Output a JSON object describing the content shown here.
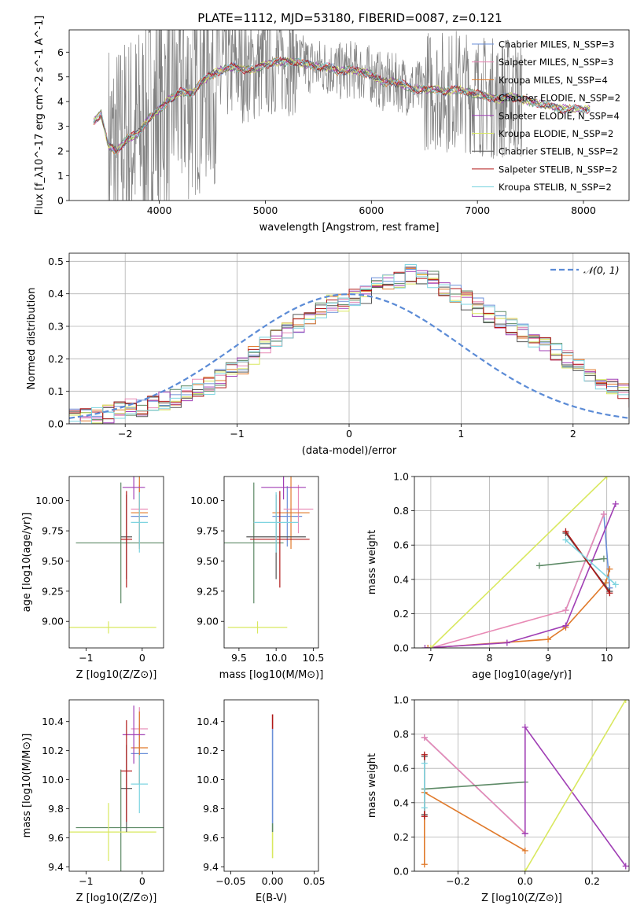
{
  "figure": {
    "title": "PLATE=1112, MJD=53180, FIBERID=0087, z=0.121"
  },
  "legend_spectrum": [
    {
      "text": "Chabrier MILES, N_SSP=3",
      "color": "#6a8fd8"
    },
    {
      "text": "Salpeter MILES, N_SSP=3",
      "color": "#e88ab5"
    },
    {
      "text": "Kroupa MILES, N_SSP=4",
      "color": "#e07a2b"
    },
    {
      "text": "Chabrier ELODIE, N_SSP=2",
      "color": "#5d8a66"
    },
    {
      "text": "Salpeter ELODIE, N_SSP=4",
      "color": "#a03fb5"
    },
    {
      "text": "Kroupa ELODIE, N_SSP=2",
      "color": "#d9e85f"
    },
    {
      "text": "Chabrier STELIB, N_SSP=2",
      "color": "#555555"
    },
    {
      "text": "Salpeter STELIB, N_SSP=2",
      "color": "#b01818"
    },
    {
      "text": "Kroupa STELIB, N_SSP=2",
      "color": "#7ed4e0"
    }
  ],
  "legend_hist": {
    "text": "𝒩(0, 1)",
    "color": "#5b8bd6"
  },
  "chart_data": [
    {
      "id": "spectrum",
      "type": "line",
      "xlabel": "wavelength [Angstrom, rest frame]",
      "ylabel": "Flux [f_λ10^-17 erg cm^-2 s^-1 A^-1]",
      "xlim": [
        3150,
        8430
      ],
      "ylim": [
        0,
        6.9
      ],
      "xticks": [
        4000,
        5000,
        6000,
        7000,
        8000
      ],
      "yticks": [
        0,
        1,
        2,
        3,
        4,
        5,
        6
      ],
      "grid": false,
      "legend": "upper right",
      "continuum": [
        [
          3380,
          3.2
        ],
        [
          3450,
          3.5
        ],
        [
          3520,
          2.2
        ],
        [
          3600,
          2.0
        ],
        [
          3700,
          2.5
        ],
        [
          3800,
          2.7
        ],
        [
          3900,
          3.3
        ],
        [
          4000,
          3.7
        ],
        [
          4100,
          4.1
        ],
        [
          4200,
          4.4
        ],
        [
          4300,
          4.3
        ],
        [
          4400,
          4.8
        ],
        [
          4500,
          5.1
        ],
        [
          4600,
          5.3
        ],
        [
          4700,
          5.4
        ],
        [
          4800,
          5.3
        ],
        [
          4900,
          5.3
        ],
        [
          5000,
          5.5
        ],
        [
          5100,
          5.6
        ],
        [
          5200,
          5.6
        ],
        [
          5300,
          5.6
        ],
        [
          5400,
          5.5
        ],
        [
          5500,
          5.4
        ],
        [
          5600,
          5.4
        ],
        [
          5700,
          5.2
        ],
        [
          5800,
          5.3
        ],
        [
          5900,
          5.2
        ],
        [
          6000,
          5.1
        ],
        [
          6100,
          4.8
        ],
        [
          6200,
          4.8
        ],
        [
          6300,
          4.7
        ],
        [
          6400,
          4.5
        ],
        [
          6500,
          4.5
        ],
        [
          6600,
          4.5
        ],
        [
          6700,
          4.4
        ],
        [
          6800,
          4.5
        ],
        [
          6900,
          4.4
        ],
        [
          7000,
          4.3
        ],
        [
          7100,
          4.2
        ],
        [
          7200,
          4.1
        ],
        [
          7300,
          4.2
        ],
        [
          7400,
          4.1
        ],
        [
          7500,
          4.0
        ],
        [
          7600,
          3.9
        ],
        [
          7700,
          3.8
        ],
        [
          7800,
          3.7
        ],
        [
          7900,
          3.7
        ],
        [
          8000,
          3.7
        ],
        [
          8060,
          3.7
        ]
      ],
      "observed_range": [
        3520,
        7420
      ]
    },
    {
      "id": "residuals",
      "type": "bar",
      "xlabel": "(data-model)/error",
      "ylabel": "Normed distribution",
      "xlim": [
        -2.5,
        2.5
      ],
      "ylim": [
        0,
        0.525
      ],
      "xticks": [
        -2,
        -1,
        0,
        1,
        2
      ],
      "yticks": [
        0.0,
        0.1,
        0.2,
        0.3,
        0.4,
        0.5
      ],
      "grid": true,
      "legend": "upper right",
      "bin_width": 0.1,
      "bin_start": -2.5,
      "histogram": [
        0.02,
        0.02,
        0.02,
        0.03,
        0.04,
        0.05,
        0.05,
        0.06,
        0.07,
        0.08,
        0.1,
        0.11,
        0.12,
        0.14,
        0.16,
        0.18,
        0.21,
        0.24,
        0.26,
        0.29,
        0.31,
        0.33,
        0.35,
        0.37,
        0.37,
        0.39,
        0.4,
        0.42,
        0.43,
        0.44,
        0.46,
        0.45,
        0.44,
        0.42,
        0.4,
        0.38,
        0.36,
        0.34,
        0.32,
        0.3,
        0.28,
        0.26,
        0.24,
        0.22,
        0.2,
        0.17,
        0.15,
        0.13,
        0.11,
        0.1,
        0.08,
        0.07,
        0.06,
        0.05,
        0.04,
        0.03,
        0.03,
        0.03,
        0.02,
        0.02
      ]
    },
    {
      "id": "age-vs-Z",
      "type": "scatter",
      "xlabel": "Z [log10(Z/Z⊙)]",
      "ylabel": "age  [log10(age/yr)]",
      "xlim": [
        -1.3,
        0.38
      ],
      "ylim": [
        8.78,
        10.2
      ],
      "xticks": [
        -1,
        0
      ],
      "yticks": [
        9.0,
        9.25,
        9.5,
        9.75,
        10.0
      ],
      "points": [
        {
          "s": 0,
          "x": -0.05,
          "xe": 0.15,
          "y": 9.87,
          "ye": 0.25
        },
        {
          "s": 1,
          "x": -0.05,
          "xe": 0.15,
          "y": 9.93,
          "ye": 0.2
        },
        {
          "s": 2,
          "x": -0.05,
          "xe": 0.15,
          "y": 9.9,
          "ye": 0.3
        },
        {
          "s": 3,
          "x": -0.38,
          "xe": 0.8,
          "y": 9.65,
          "ye": 0.5
        },
        {
          "s": 4,
          "x": -0.15,
          "xe": 0.2,
          "y": 10.11,
          "ye": 0.1
        },
        {
          "s": 5,
          "x": -0.6,
          "xe": 0.85,
          "y": 8.95,
          "ye": 0.05
        },
        {
          "s": 6,
          "x": -0.28,
          "xe": 0.1,
          "y": 9.7,
          "ye": 0.35
        },
        {
          "s": 7,
          "x": -0.28,
          "xe": 0.1,
          "y": 9.68,
          "ye": 0.4
        },
        {
          "s": 8,
          "x": -0.05,
          "xe": 0.15,
          "y": 9.82,
          "ye": 0.25
        }
      ]
    },
    {
      "id": "age-vs-mass",
      "type": "scatter",
      "xlabel": "mass [log10(M/M⊙)]",
      "ylabel": "",
      "xlim": [
        9.3,
        10.57
      ],
      "ylim": [
        8.78,
        10.2
      ],
      "xticks": [
        9.5,
        10.0,
        10.5
      ],
      "yticks": [
        9.0,
        9.25,
        9.5,
        9.75,
        10.0
      ],
      "points": [
        {
          "s": 0,
          "x": 10.15,
          "xe": 0.2,
          "y": 9.87,
          "ye": 0.25
        },
        {
          "s": 1,
          "x": 10.3,
          "xe": 0.2,
          "y": 9.93,
          "ye": 0.2
        },
        {
          "s": 2,
          "x": 10.2,
          "xe": 0.25,
          "y": 9.9,
          "ye": 0.3
        },
        {
          "s": 3,
          "x": 9.7,
          "xe": 0.4,
          "y": 9.65,
          "ye": 0.5
        },
        {
          "s": 4,
          "x": 10.1,
          "xe": 0.3,
          "y": 10.11,
          "ye": 0.1
        },
        {
          "s": 5,
          "x": 9.75,
          "xe": 0.4,
          "y": 8.95,
          "ye": 0.05
        },
        {
          "s": 6,
          "x": 10.0,
          "xe": 0.4,
          "y": 9.7,
          "ye": 0.35
        },
        {
          "s": 7,
          "x": 10.05,
          "xe": 0.4,
          "y": 9.68,
          "ye": 0.4
        },
        {
          "s": 8,
          "x": 10.0,
          "xe": 0.3,
          "y": 9.82,
          "ye": 0.25
        }
      ]
    },
    {
      "id": "weight-vs-age",
      "type": "line",
      "xlabel": "age  [log10(age/yr)]",
      "ylabel": "mass weight",
      "xlim": [
        6.72,
        10.38
      ],
      "ylim": [
        0,
        1
      ],
      "xticks": [
        7,
        8,
        9,
        10
      ],
      "yticks": [
        0.0,
        0.2,
        0.4,
        0.6,
        0.8,
        1.0
      ],
      "grid": true,
      "series": [
        {
          "s": 0,
          "x": [
            9.3,
            9.95,
            10.05
          ],
          "y": [
            0.22,
            0.78,
            0.35
          ]
        },
        {
          "s": 1,
          "x": [
            7.0,
            9.3,
            9.95
          ],
          "y": [
            0.0,
            0.22,
            0.78
          ]
        },
        {
          "s": 2,
          "x": [
            6.95,
            9.0,
            9.3,
            9.98,
            10.05
          ],
          "y": [
            0.0,
            0.05,
            0.12,
            0.38,
            0.46
          ]
        },
        {
          "s": 3,
          "x": [
            8.85,
            9.95
          ],
          "y": [
            0.48,
            0.52
          ]
        },
        {
          "s": 4,
          "x": [
            6.9,
            8.3,
            9.3,
            10.15
          ],
          "y": [
            0.0,
            0.03,
            0.13,
            0.84
          ]
        },
        {
          "s": 5,
          "x": [
            7.0,
            10.0
          ],
          "y": [
            0.0,
            1.0
          ]
        },
        {
          "s": 6,
          "x": [
            9.3,
            10.05
          ],
          "y": [
            0.67,
            0.33
          ]
        },
        {
          "s": 7,
          "x": [
            9.3,
            10.05
          ],
          "y": [
            0.68,
            0.32
          ]
        },
        {
          "s": 8,
          "x": [
            9.3,
            10.15
          ],
          "y": [
            0.63,
            0.37
          ]
        }
      ]
    },
    {
      "id": "mass-vs-Z",
      "type": "scatter",
      "xlabel": "Z [log10(Z/Z⊙)]",
      "ylabel": "mass [log10(M/M⊙)]",
      "xlim": [
        -1.3,
        0.38
      ],
      "ylim": [
        9.37,
        10.55
      ],
      "xticks": [
        -1,
        0
      ],
      "yticks": [
        9.4,
        9.6,
        9.8,
        10.0,
        10.2,
        10.4
      ],
      "points": [
        {
          "s": 0,
          "x": -0.05,
          "xe": 0.15,
          "y": 10.18,
          "ye": 0.2
        },
        {
          "s": 1,
          "x": -0.05,
          "xe": 0.15,
          "y": 10.35,
          "ye": 0.15
        },
        {
          "s": 2,
          "x": -0.05,
          "xe": 0.15,
          "y": 10.22,
          "ye": 0.25
        },
        {
          "s": 3,
          "x": -0.38,
          "xe": 0.8,
          "y": 9.67,
          "ye": 0.4
        },
        {
          "s": 4,
          "x": -0.15,
          "xe": 0.2,
          "y": 10.31,
          "ye": 0.2
        },
        {
          "s": 5,
          "x": -0.6,
          "xe": 0.85,
          "y": 9.64,
          "ye": 0.2
        },
        {
          "s": 6,
          "x": -0.28,
          "xe": 0.1,
          "y": 9.94,
          "ye": 0.3
        },
        {
          "s": 7,
          "x": -0.28,
          "xe": 0.1,
          "y": 10.06,
          "ye": 0.35
        },
        {
          "s": 8,
          "x": -0.05,
          "xe": 0.15,
          "y": 9.97,
          "ye": 0.2
        }
      ]
    },
    {
      "id": "mass-vs-EBV",
      "type": "scatter",
      "xlabel": "E(B-V)",
      "ylabel": "",
      "xlim": [
        -0.058,
        0.055
      ],
      "ylim": [
        9.37,
        10.55
      ],
      "xticks": [
        -0.05,
        0.0,
        0.05
      ],
      "yticks": [
        9.4,
        9.6,
        9.8,
        10.0,
        10.2,
        10.4
      ],
      "points": [
        {
          "s": 5,
          "x": 0.0,
          "y_low": 9.46,
          "y_high": 9.64
        },
        {
          "s": 3,
          "x": 0.0,
          "y_low": 9.64,
          "y_high": 9.7
        },
        {
          "s": 0,
          "x": 0.0,
          "y_low": 9.7,
          "y_high": 10.35
        },
        {
          "s": 7,
          "x": 0.0,
          "y_low": 10.35,
          "y_high": 10.45
        }
      ]
    },
    {
      "id": "weight-vs-Z",
      "type": "line",
      "xlabel": "Z [log10(Z/Z⊙)]",
      "ylabel": "mass weight",
      "xlim": [
        -0.33,
        0.31
      ],
      "ylim": [
        0,
        1
      ],
      "xticks": [
        -0.2,
        0.0,
        0.2
      ],
      "yticks": [
        0.0,
        0.2,
        0.4,
        0.6,
        0.8,
        1.0
      ],
      "grid": true,
      "series": [
        {
          "s": 0,
          "x": [
            -0.3,
            0.0
          ],
          "y": [
            0.78,
            0.22
          ]
        },
        {
          "s": 1,
          "x": [
            -0.3,
            0.0
          ],
          "y": [
            0.78,
            0.22
          ]
        },
        {
          "s": 2,
          "x": [
            -0.3,
            -0.3,
            0.0
          ],
          "y": [
            0.04,
            0.46,
            0.12
          ]
        },
        {
          "s": 3,
          "x": [
            -0.3,
            0.0
          ],
          "y": [
            0.48,
            0.52
          ]
        },
        {
          "s": 4,
          "x": [
            0.0,
            0.0,
            0.3
          ],
          "y": [
            0.22,
            0.84,
            0.03
          ]
        },
        {
          "s": 5,
          "x": [
            0.0,
            0.3
          ],
          "y": [
            0.0,
            1.0
          ]
        },
        {
          "s": 6,
          "x": [
            -0.3,
            -0.3
          ],
          "y": [
            0.33,
            0.67
          ]
        },
        {
          "s": 7,
          "x": [
            -0.3,
            -0.3
          ],
          "y": [
            0.32,
            0.68
          ]
        },
        {
          "s": 8,
          "x": [
            -0.3,
            -0.3
          ],
          "y": [
            0.37,
            0.63
          ]
        }
      ]
    }
  ]
}
